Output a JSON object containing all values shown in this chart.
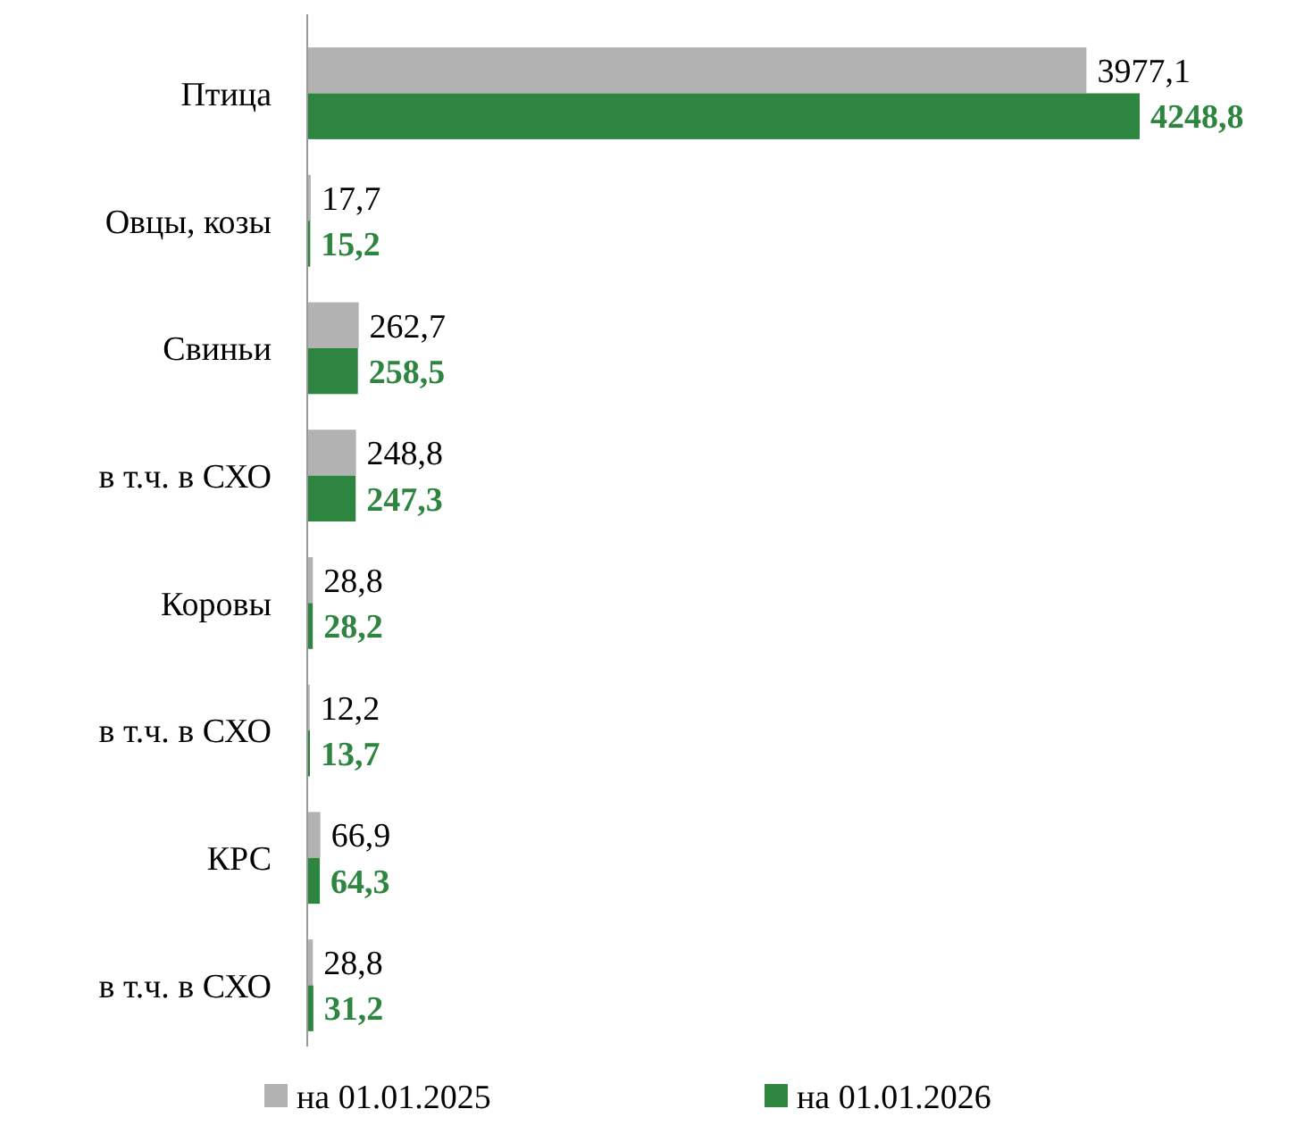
{
  "chart_data": {
    "type": "bar",
    "orientation": "horizontal",
    "categories": [
      "Птица",
      "Овцы, козы",
      "Свиньи",
      "в т.ч. в СХО",
      "Коровы",
      "в т.ч. в СХО",
      "КРС",
      "в т.ч. в СХО"
    ],
    "series": [
      {
        "name": "на 01.01.2025",
        "color": "#b2b2b2",
        "values": [
          3977.1,
          17.7,
          262.7,
          248.8,
          28.8,
          12.2,
          66.9,
          28.8
        ],
        "value_labels": [
          "3977,1",
          "17,7",
          "262,7",
          "248,8",
          "28,8",
          "12,2",
          "66,9",
          "28,8"
        ]
      },
      {
        "name": "на 01.01.2026",
        "color": "#2e8540",
        "values": [
          4248.8,
          15.2,
          258.5,
          247.3,
          28.2,
          13.7,
          64.3,
          31.2
        ],
        "value_labels": [
          "4248,8",
          "15,2",
          "258,5",
          "247,3",
          "28,2",
          "13,7",
          "64,3",
          "31,2"
        ]
      }
    ],
    "legend": "bottom"
  }
}
